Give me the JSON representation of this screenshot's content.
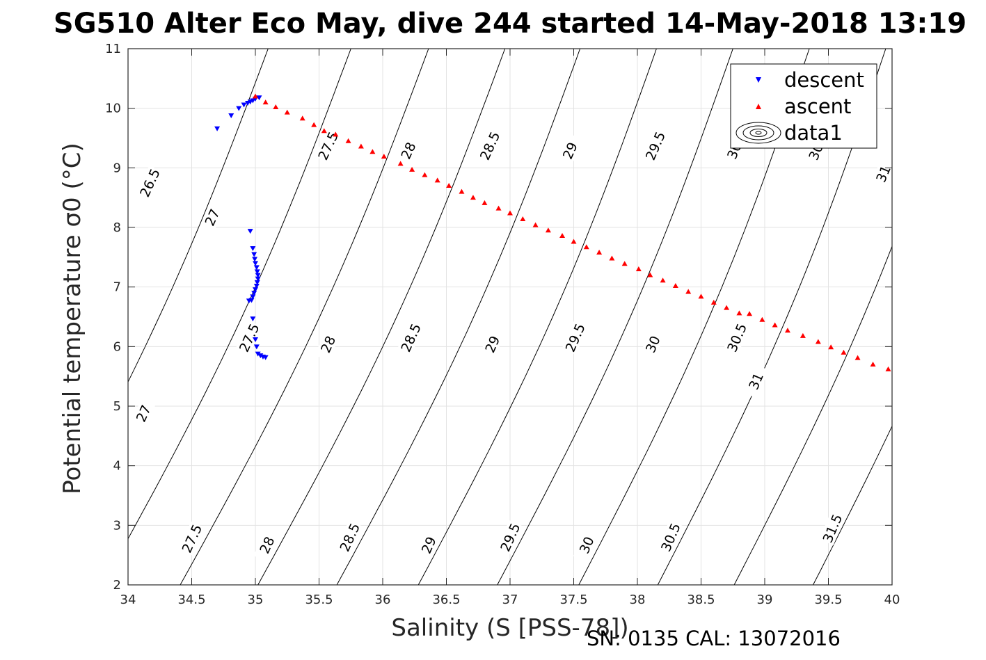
{
  "title": "SG510 Alter Eco May, dive 244 started 14-May-2018 13:19",
  "footer": "SN: 0135  CAL: 13072016",
  "chart_data": {
    "type": "scatter",
    "title": "SG510 Alter Eco May, dive 244 started 14-May-2018 13:19",
    "xlabel": "Salinity (S [PSS-78])",
    "ylabel": "Potential temperature σ0 (°C)",
    "xlim": [
      34,
      40
    ],
    "ylim": [
      2,
      11
    ],
    "xticks": [
      "34",
      "34.5",
      "35",
      "35.5",
      "36",
      "36.5",
      "37",
      "37.5",
      "38",
      "38.5",
      "39",
      "39.5",
      "40"
    ],
    "yticks": [
      "2",
      "3",
      "4",
      "5",
      "6",
      "7",
      "8",
      "9",
      "10",
      "11"
    ],
    "grid": true,
    "legend": {
      "placement": "top-right",
      "entries": [
        "descent",
        "ascent",
        "data1"
      ]
    },
    "colors": {
      "descent": "#0000ff",
      "ascent": "#ff0000",
      "contour": "#000000"
    },
    "series": [
      {
        "name": "descent",
        "marker": "triangle-down",
        "x": [
          34.7,
          34.81,
          34.87,
          34.91,
          34.94,
          34.96,
          34.98,
          35.0,
          35.03,
          34.96,
          34.98,
          34.99,
          34.995,
          35.0,
          35.01,
          35.015,
          35.02,
          35.02,
          35.015,
          35.01,
          35.0,
          34.99,
          34.98,
          34.97,
          34.95,
          34.98,
          35.0,
          35.01,
          35.02,
          35.04,
          35.06,
          35.08
        ],
        "y": [
          9.66,
          9.88,
          10.0,
          10.06,
          10.09,
          10.11,
          10.13,
          10.16,
          10.18,
          7.94,
          7.65,
          7.55,
          7.47,
          7.4,
          7.33,
          7.26,
          7.2,
          7.14,
          7.08,
          7.02,
          6.96,
          6.9,
          6.84,
          6.78,
          6.77,
          6.47,
          6.12,
          6.0,
          5.88,
          5.85,
          5.83,
          5.82
        ]
      },
      {
        "name": "ascent",
        "marker": "triangle-up",
        "x": [
          35.0,
          35.08,
          35.16,
          35.25,
          35.37,
          35.46,
          35.54,
          35.63,
          35.73,
          35.83,
          35.92,
          36.01,
          36.14,
          36.23,
          36.33,
          36.43,
          36.52,
          36.62,
          36.71,
          36.8,
          36.91,
          37.0,
          37.1,
          37.2,
          37.3,
          37.41,
          37.5,
          37.6,
          37.7,
          37.8,
          37.9,
          38.01,
          38.1,
          38.2,
          38.3,
          38.4,
          38.5,
          38.6,
          38.7,
          38.8,
          38.88,
          38.98,
          39.08,
          39.18,
          39.3,
          39.42,
          39.52,
          39.62,
          39.73,
          39.85,
          39.97
        ],
        "y": [
          10.2,
          10.1,
          10.02,
          9.93,
          9.83,
          9.72,
          9.62,
          9.56,
          9.45,
          9.36,
          9.27,
          9.19,
          9.07,
          8.97,
          8.88,
          8.79,
          8.7,
          8.6,
          8.5,
          8.41,
          8.32,
          8.24,
          8.14,
          8.04,
          7.95,
          7.86,
          7.76,
          7.67,
          7.58,
          7.48,
          7.39,
          7.3,
          7.2,
          7.11,
          7.02,
          6.92,
          6.84,
          6.74,
          6.65,
          6.56,
          6.55,
          6.45,
          6.36,
          6.27,
          6.18,
          6.08,
          5.99,
          5.9,
          5.81,
          5.7,
          5.62
        ]
      }
    ],
    "contours": [
      {
        "label": "26.5",
        "x_bottom": 33.15,
        "x_top": 35.1,
        "labels_at": [
          [
            34.17,
            8.75
          ]
        ]
      },
      {
        "label": "27",
        "x_bottom": 33.8,
        "x_top": 35.75,
        "labels_at": [
          [
            34.12,
            4.88
          ],
          [
            34.66,
            8.17
          ]
        ]
      },
      {
        "label": "27.5",
        "x_bottom": 34.41,
        "x_top": 36.36,
        "labels_at": [
          [
            34.5,
            2.78
          ],
          [
            34.95,
            6.15
          ],
          [
            35.57,
            9.37
          ]
        ]
      },
      {
        "label": "28",
        "x_bottom": 35.02,
        "x_top": 36.96,
        "labels_at": [
          [
            35.09,
            2.67
          ],
          [
            35.57,
            6.04
          ],
          [
            36.2,
            9.29
          ]
        ]
      },
      {
        "label": "28.5",
        "x_bottom": 35.64,
        "x_top": 37.55,
        "labels_at": [
          [
            35.74,
            2.8
          ],
          [
            36.22,
            6.15
          ],
          [
            36.84,
            9.37
          ]
        ]
      },
      {
        "label": "29",
        "x_bottom": 36.28,
        "x_top": 38.15,
        "labels_at": [
          [
            36.36,
            2.67
          ],
          [
            36.86,
            6.04
          ],
          [
            37.47,
            9.29
          ]
        ]
      },
      {
        "label": "29.5",
        "x_bottom": 36.9,
        "x_top": 38.75,
        "labels_at": [
          [
            37.0,
            2.8
          ],
          [
            37.51,
            6.15
          ],
          [
            38.14,
            9.37
          ]
        ]
      },
      {
        "label": "30",
        "x_bottom": 37.54,
        "x_top": 39.35,
        "labels_at": [
          [
            37.6,
            2.67
          ],
          [
            38.12,
            6.04
          ],
          [
            38.76,
            9.29
          ]
        ]
      },
      {
        "label": "30.5",
        "x_bottom": 38.16,
        "x_top": 39.95,
        "labels_at": [
          [
            38.26,
            2.8
          ],
          [
            38.78,
            6.15
          ],
          [
            39.42,
            9.37
          ]
        ]
      },
      {
        "label": "31",
        "x_bottom": 38.76,
        "x_top": 40.55,
        "labels_at": [
          [
            38.93,
            5.42
          ],
          [
            39.93,
            8.9
          ]
        ]
      },
      {
        "label": "31.5",
        "x_bottom": 39.38,
        "x_top": 41.15,
        "labels_at": [
          [
            39.53,
            2.95
          ]
        ]
      }
    ]
  }
}
